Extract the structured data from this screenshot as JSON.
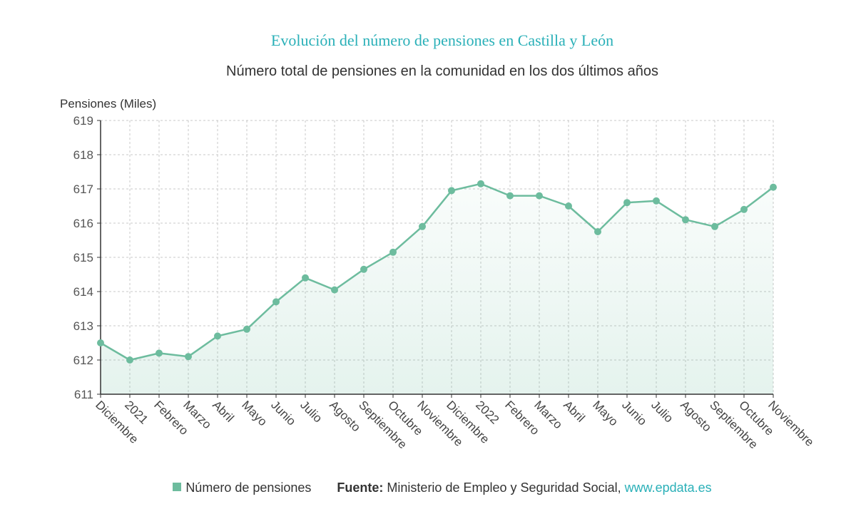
{
  "colors": {
    "title": "#2ab0b8",
    "series": "#6dbc9e",
    "grid": "#c8c8c8",
    "link": "#2ab0b8"
  },
  "footer": {
    "legend_label": "Número de pensiones",
    "source_label": "Fuente:",
    "source_text": " Ministerio de Empleo y Seguridad Social, ",
    "source_link": "www.epdata.es"
  },
  "chart_data": {
    "type": "area",
    "title": "Evolución del número de pensiones en Castilla y León",
    "subtitle": "Número total de pensiones en la comunidad en los dos últimos años",
    "xlabel": "",
    "ylabel": "Pensiones (Miles)",
    "ylim": [
      611,
      619
    ],
    "yticks": [
      611,
      612,
      613,
      614,
      615,
      616,
      617,
      618,
      619
    ],
    "grid": true,
    "legend": "bottom",
    "categories": [
      "Diciembre",
      "2021",
      "Febrero",
      "Marzo",
      "Abril",
      "Mayo",
      "Junio",
      "Julio",
      "Agosto",
      "Septiembre",
      "Octubre",
      "Noviembre",
      "Diciembre",
      "2022",
      "Febrero",
      "Marzo",
      "Abril",
      "Mayo",
      "Junio",
      "Julio",
      "Agosto",
      "Septiembre",
      "Octubre",
      "Noviembre"
    ],
    "series": [
      {
        "name": "Número de pensiones",
        "values": [
          612.5,
          612.0,
          612.2,
          612.1,
          612.7,
          612.9,
          613.7,
          614.4,
          614.05,
          614.65,
          615.15,
          615.9,
          616.95,
          617.15,
          616.8,
          616.8,
          616.5,
          615.75,
          616.6,
          616.65,
          616.1,
          615.9,
          616.4,
          617.05
        ]
      }
    ]
  }
}
